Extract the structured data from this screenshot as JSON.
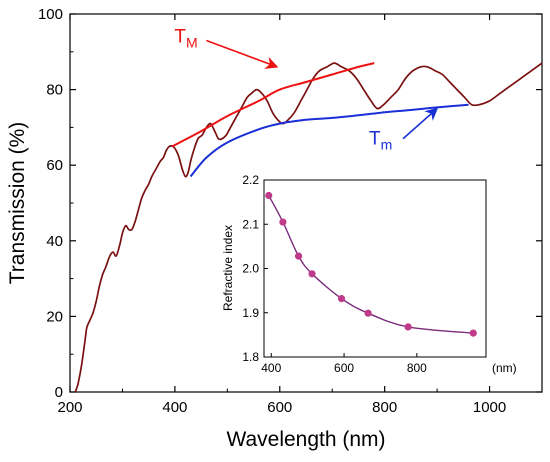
{
  "colors": {
    "transmission": "#7a1010",
    "envelope_max": "#ee1111",
    "envelope_min": "#1a2fd6",
    "inset_points": "#c03a8a",
    "inset_line": "#7a2a7a",
    "axis": "#000000"
  },
  "chart_data": [
    {
      "type": "line",
      "xlabel": "Wavelength (nm)",
      "ylabel": "Transmission (%)",
      "xlim": [
        200,
        1100
      ],
      "ylim": [
        0,
        100
      ],
      "xticks": [
        200,
        400,
        600,
        800,
        1000
      ],
      "yticks": [
        0,
        20,
        40,
        60,
        80,
        100
      ],
      "grid": false,
      "series": [
        {
          "role": "spectrum",
          "x": [
            210,
            215,
            222,
            228,
            232,
            238,
            244,
            250,
            256,
            262,
            268,
            276,
            282,
            288,
            295,
            300,
            306,
            312,
            318,
            324,
            330,
            336,
            342,
            350,
            356,
            364,
            372,
            378,
            384,
            390,
            396,
            402,
            408,
            414,
            420,
            425,
            430,
            436,
            444,
            452,
            460,
            468,
            476,
            483,
            490,
            498,
            506,
            514,
            522,
            530,
            538,
            546,
            556,
            566,
            576,
            586,
            596,
            606,
            616,
            628,
            640,
            652,
            664,
            676,
            690,
            704,
            718,
            732,
            746,
            760,
            774,
            786,
            798,
            812,
            826,
            840,
            854,
            868,
            882,
            896,
            910,
            924,
            938,
            952,
            966,
            980,
            1000,
            1020,
            1040,
            1060,
            1080,
            1100
          ],
          "y": [
            0,
            2,
            7,
            13,
            17,
            19,
            21,
            24,
            28,
            31,
            33,
            36,
            37,
            36,
            39,
            42,
            44,
            43,
            43,
            45,
            48,
            51,
            53,
            55,
            57,
            59,
            61,
            62,
            64,
            65,
            65,
            64,
            62,
            59,
            57,
            58,
            61,
            64,
            67,
            68,
            70,
            71,
            69,
            67,
            67,
            68,
            70,
            72,
            74,
            76,
            78,
            79,
            80,
            79,
            77,
            74,
            72,
            71,
            72,
            74,
            77,
            80,
            83,
            85,
            86,
            87,
            86,
            85,
            83,
            80,
            77,
            75,
            76,
            78,
            80,
            83,
            85,
            86,
            86,
            85,
            84,
            82,
            80,
            78,
            76,
            76,
            77,
            79,
            81,
            83,
            85,
            87
          ]
        },
        {
          "name": "T",
          "subscript": "M",
          "role": "envelope-max",
          "x": [
            395,
            450,
            500,
            560,
            600,
            650,
            700,
            750,
            780
          ],
          "y": [
            65,
            69,
            73,
            77,
            80,
            82,
            84,
            86,
            87
          ]
        },
        {
          "name": "T",
          "subscript": "m",
          "role": "envelope-min",
          "x": [
            430,
            460,
            500,
            560,
            600,
            650,
            700,
            750,
            800,
            850,
            900,
            960
          ],
          "y": [
            57,
            62,
            66,
            69.5,
            71,
            72,
            72.5,
            73.2,
            74,
            74.6,
            75.3,
            76
          ]
        }
      ],
      "annotations": [
        {
          "label": "T",
          "subscript": "M",
          "arrow_from": [
            460,
            93
          ],
          "arrow_to": [
            595,
            86
          ]
        },
        {
          "label": "T",
          "subscript": "m",
          "arrow_from": [
            835,
            67
          ],
          "arrow_to": [
            900,
            75
          ]
        }
      ]
    },
    {
      "type": "line",
      "inset": true,
      "ylabel": "Refractive index",
      "x_unit_label": "(nm)",
      "xlim": [
        380,
        990
      ],
      "ylim": [
        1.8,
        2.2
      ],
      "xticks": [
        400,
        600,
        800
      ],
      "yticks": [
        1.8,
        1.9,
        2.0,
        2.1,
        2.2
      ],
      "grid": false,
      "x": [
        393,
        432,
        475,
        512,
        593,
        666,
        776,
        955
      ],
      "y": [
        2.165,
        2.105,
        2.028,
        1.988,
        1.932,
        1.899,
        1.868,
        1.854
      ]
    }
  ]
}
